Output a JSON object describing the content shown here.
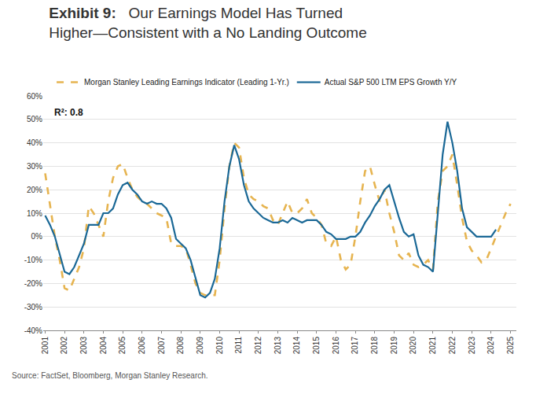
{
  "chart_data": {
    "type": "line",
    "title": "Exhibit 9:  Our Earnings Model Has Turned Higher—Consistent with a No Landing Outcome",
    "annotations": [
      "R²: 0.8"
    ],
    "source": "Source: FactSet, Bloomberg, Morgan Stanley Research.",
    "x": [
      2001,
      2001.25,
      2001.5,
      2001.75,
      2002,
      2002.25,
      2002.5,
      2002.75,
      2003,
      2003.25,
      2003.5,
      2003.75,
      2004,
      2004.25,
      2004.5,
      2004.75,
      2005,
      2005.25,
      2005.5,
      2005.75,
      2006,
      2006.25,
      2006.5,
      2006.75,
      2007,
      2007.25,
      2007.5,
      2007.75,
      2008,
      2008.25,
      2008.5,
      2008.75,
      2009,
      2009.25,
      2009.5,
      2009.75,
      2010,
      2010.25,
      2010.5,
      2010.75,
      2011,
      2011.25,
      2011.5,
      2011.75,
      2012,
      2012.25,
      2012.5,
      2012.75,
      2013,
      2013.25,
      2013.5,
      2013.75,
      2014,
      2014.25,
      2014.5,
      2014.75,
      2015,
      2015.25,
      2015.5,
      2015.75,
      2016,
      2016.25,
      2016.5,
      2016.75,
      2017,
      2017.25,
      2017.5,
      2017.75,
      2018,
      2018.25,
      2018.5,
      2018.75,
      2019,
      2019.25,
      2019.5,
      2019.75,
      2020,
      2020.25,
      2020.5,
      2020.75,
      2021,
      2021.25,
      2021.5,
      2021.75,
      2022,
      2022.25,
      2022.5,
      2022.75,
      2023,
      2023.25,
      2023.5,
      2023.75,
      2024,
      2024.25,
      2024.5,
      2024.75,
      2025
    ],
    "series": [
      {
        "name": "Morgan Stanley Leading Earnings Indicator (Leading 1-Yr.)",
        "color": "#e6b450",
        "line_style": "dash",
        "values": [
          27,
          14,
          0,
          -10,
          -22,
          -23,
          -18,
          -13,
          -5,
          13,
          10,
          5,
          0,
          15,
          25,
          30,
          31,
          25,
          20,
          17,
          15,
          14,
          12,
          10,
          9,
          8,
          -3,
          -4,
          -4,
          -5,
          -12,
          -20,
          -24,
          -25,
          -25,
          -25,
          -10,
          12,
          30,
          40,
          38,
          25,
          18,
          16,
          15,
          13,
          12,
          7,
          5,
          10,
          15,
          10,
          10,
          12,
          16,
          10,
          8,
          5,
          -3,
          -4,
          0,
          -10,
          -14,
          -12,
          0,
          15,
          28,
          30,
          22,
          15,
          20,
          10,
          2,
          -8,
          -10,
          -7,
          -12,
          -13,
          -12,
          -10,
          -14,
          15,
          28,
          30,
          35,
          22,
          8,
          -2,
          -6,
          -8,
          -11,
          -10,
          -5,
          0,
          5,
          10,
          14
        ]
      },
      {
        "name": "Actual S&P 500 LTM EPS Growth Y/Y",
        "color": "#1a6896",
        "line_style": "solid",
        "values": [
          9,
          5,
          0,
          -8,
          -15,
          -16,
          -13,
          -8,
          -3,
          5,
          5,
          5,
          10,
          10,
          12,
          18,
          22,
          23,
          20,
          18,
          15,
          14,
          15,
          14,
          14,
          12,
          8,
          -1,
          -3,
          -5,
          -10,
          -18,
          -25,
          -26,
          -24,
          -18,
          -5,
          15,
          30,
          39,
          33,
          22,
          15,
          12,
          10,
          8,
          7,
          6,
          6,
          7,
          6,
          8,
          7,
          6,
          7,
          7,
          7,
          5,
          2,
          1,
          -1,
          -1,
          -1,
          0,
          0,
          2,
          6,
          9,
          13,
          16,
          20,
          22,
          15,
          8,
          2,
          0,
          1,
          -8,
          -12,
          -13,
          -15,
          10,
          35,
          49,
          40,
          28,
          12,
          4,
          2,
          0,
          0,
          0,
          0,
          3,
          null,
          null,
          null
        ]
      }
    ],
    "xlim": [
      2000.9,
      2025.3
    ],
    "xticks": [
      2001,
      2002,
      2003,
      2004,
      2005,
      2006,
      2007,
      2008,
      2009,
      2010,
      2011,
      2012,
      2013,
      2014,
      2015,
      2016,
      2017,
      2018,
      2019,
      2020,
      2021,
      2022,
      2023,
      2024,
      2025
    ],
    "ylim": [
      -40,
      60
    ],
    "yticks": [
      {
        "value": -40,
        "label": "-40%"
      },
      {
        "value": -30,
        "label": "-30%"
      },
      {
        "value": -20,
        "label": "-20%"
      },
      {
        "value": -10,
        "label": "-10%"
      },
      {
        "value": 0,
        "label": "0%"
      },
      {
        "value": 10,
        "label": "10%"
      },
      {
        "value": 20,
        "label": "20%"
      },
      {
        "value": 30,
        "label": "30%"
      },
      {
        "value": 40,
        "label": "40%"
      },
      {
        "value": 50,
        "label": "50%"
      },
      {
        "value": 60,
        "label": "60%"
      }
    ],
    "grid": true,
    "legend": "top"
  }
}
